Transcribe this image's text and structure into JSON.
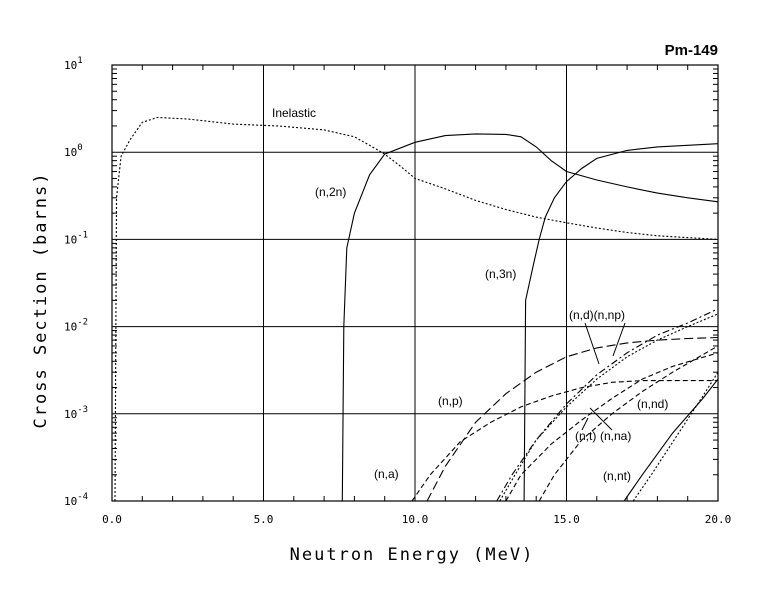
{
  "chart_data": {
    "type": "line",
    "title": "Pm-149",
    "xlabel": "Neutron Energy (MeV)",
    "ylabel": "Cross Section (barns)",
    "xlim": [
      0,
      20
    ],
    "ylim": [
      0.0001,
      10
    ],
    "yscale": "log",
    "grid": true,
    "x_ticks": [
      "0.0",
      "5.0",
      "10.0",
      "15.0",
      "20.0"
    ],
    "y_ticks": [
      {
        "value": 0.0001,
        "base": "10",
        "exp": "-4"
      },
      {
        "value": 0.001,
        "base": "10",
        "exp": "-3"
      },
      {
        "value": 0.01,
        "base": "10",
        "exp": "-2"
      },
      {
        "value": 0.1,
        "base": "10",
        "exp": "-1"
      },
      {
        "value": 1,
        "base": "10",
        "exp": "0"
      },
      {
        "value": 10,
        "base": "10",
        "exp": "1"
      }
    ],
    "series": [
      {
        "name": "Inelastic",
        "style": "dotted",
        "points": [
          [
            0.1,
            0.0001
          ],
          [
            0.15,
            0.3
          ],
          [
            0.3,
            0.9
          ],
          [
            0.6,
            1.4
          ],
          [
            1.0,
            2.2
          ],
          [
            1.5,
            2.5
          ],
          [
            2.5,
            2.4
          ],
          [
            4,
            2.1
          ],
          [
            5.5,
            2.0
          ],
          [
            7,
            1.8
          ],
          [
            8,
            1.5
          ],
          [
            8.5,
            1.2
          ],
          [
            9,
            0.95
          ],
          [
            9.5,
            0.7
          ],
          [
            10,
            0.5
          ],
          [
            11,
            0.38
          ],
          [
            12,
            0.28
          ],
          [
            13,
            0.22
          ],
          [
            14,
            0.18
          ],
          [
            15,
            0.155
          ],
          [
            16,
            0.135
          ],
          [
            17,
            0.12
          ],
          [
            18,
            0.11
          ],
          [
            19,
            0.105
          ],
          [
            20,
            0.1
          ]
        ]
      },
      {
        "name": "(n,2n)",
        "style": "solid",
        "points": [
          [
            7.6,
            0.0001
          ],
          [
            7.65,
            0.01
          ],
          [
            7.75,
            0.08
          ],
          [
            8,
            0.2
          ],
          [
            8.5,
            0.55
          ],
          [
            9,
            0.95
          ],
          [
            10,
            1.3
          ],
          [
            11,
            1.55
          ],
          [
            12,
            1.62
          ],
          [
            13,
            1.6
          ],
          [
            13.5,
            1.5
          ],
          [
            14,
            1.15
          ],
          [
            14.5,
            0.8
          ],
          [
            15,
            0.6
          ],
          [
            16,
            0.48
          ],
          [
            17,
            0.4
          ],
          [
            18,
            0.34
          ],
          [
            19,
            0.3
          ],
          [
            20,
            0.27
          ]
        ]
      },
      {
        "name": "(n,3n)",
        "style": "solid",
        "points": [
          [
            13.6,
            0.0001
          ],
          [
            13.65,
            0.02
          ],
          [
            13.9,
            0.05
          ],
          [
            14.1,
            0.1
          ],
          [
            14.3,
            0.18
          ],
          [
            14.6,
            0.3
          ],
          [
            15,
            0.46
          ],
          [
            15.5,
            0.65
          ],
          [
            16,
            0.85
          ],
          [
            17,
            1.05
          ],
          [
            18,
            1.15
          ],
          [
            19,
            1.2
          ],
          [
            20,
            1.25
          ]
        ]
      },
      {
        "name": "(n,p)",
        "style": "dashed-long",
        "points": [
          [
            10.4,
            0.0001
          ],
          [
            11,
            0.00025
          ],
          [
            12,
            0.0008
          ],
          [
            13,
            0.0017
          ],
          [
            14,
            0.003
          ],
          [
            15,
            0.0045
          ],
          [
            16,
            0.0057
          ],
          [
            17,
            0.0065
          ],
          [
            18,
            0.007
          ],
          [
            19,
            0.0073
          ],
          [
            20,
            0.0075
          ]
        ]
      },
      {
        "name": "(n,a)",
        "style": "dashed",
        "points": [
          [
            9.9,
            0.0001
          ],
          [
            10.5,
            0.0002
          ],
          [
            11.5,
            0.00048
          ],
          [
            12.5,
            0.0008
          ],
          [
            13.5,
            0.0012
          ],
          [
            14.5,
            0.0016
          ],
          [
            15.5,
            0.002
          ],
          [
            16.5,
            0.0023
          ],
          [
            17.5,
            0.0024
          ],
          [
            18.5,
            0.0024
          ],
          [
            20,
            0.0024
          ]
        ]
      },
      {
        "name": "(n,d)",
        "style": "dotted",
        "points": [
          [
            12.8,
            0.0001
          ],
          [
            13.3,
            0.0002
          ],
          [
            14,
            0.0005
          ],
          [
            15,
            0.0012
          ],
          [
            16,
            0.0025
          ],
          [
            17,
            0.0045
          ],
          [
            18,
            0.007
          ],
          [
            19,
            0.01
          ],
          [
            20,
            0.014
          ]
        ]
      },
      {
        "name": "(n,np)",
        "style": "dash-dot",
        "points": [
          [
            12.7,
            0.0001
          ],
          [
            13.2,
            0.0002
          ],
          [
            14,
            0.0005
          ],
          [
            15,
            0.0013
          ],
          [
            16,
            0.0028
          ],
          [
            17,
            0.005
          ],
          [
            18,
            0.008
          ],
          [
            19,
            0.011
          ],
          [
            20,
            0.016
          ]
        ]
      },
      {
        "name": "(n,t)",
        "style": "dashed",
        "points": [
          [
            13,
            0.0001
          ],
          [
            13.5,
            0.0002
          ],
          [
            14.5,
            0.00045
          ],
          [
            15.5,
            0.00085
          ],
          [
            16.5,
            0.0015
          ],
          [
            17.5,
            0.0025
          ],
          [
            18.5,
            0.0035
          ],
          [
            20,
            0.005
          ]
        ]
      },
      {
        "name": "(n,na)",
        "style": "dashed",
        "points": [
          [
            14.1,
            0.0001
          ],
          [
            14.6,
            0.0002
          ],
          [
            15.5,
            0.0005
          ],
          [
            16.5,
            0.001
          ],
          [
            17.5,
            0.0018
          ],
          [
            18.5,
            0.003
          ],
          [
            20,
            0.006
          ]
        ]
      },
      {
        "name": "(n,nd)",
        "style": "solid",
        "points": [
          [
            16.9,
            0.0001
          ],
          [
            17.5,
            0.0002
          ],
          [
            18.5,
            0.0006
          ],
          [
            19.5,
            0.0015
          ],
          [
            20,
            0.0025
          ]
        ]
      },
      {
        "name": "(n,nt)",
        "style": "dotted",
        "points": [
          [
            17.2,
            0.0001
          ],
          [
            17.8,
            0.0002
          ],
          [
            18.7,
            0.0006
          ],
          [
            19.5,
            0.0016
          ],
          [
            20,
            0.003
          ]
        ]
      }
    ],
    "annotations": [
      {
        "text": "Inelastic"
      },
      {
        "text": "(n,2n)"
      },
      {
        "text": "(n,3n)"
      },
      {
        "text": "(n,d)(n,np)"
      },
      {
        "text": "(n,p)"
      },
      {
        "text": "(n,nd)"
      },
      {
        "text": "(n,t)"
      },
      {
        "text": "(n,na)"
      },
      {
        "text": "(n,a)"
      },
      {
        "text": "(n,nt)"
      }
    ]
  }
}
